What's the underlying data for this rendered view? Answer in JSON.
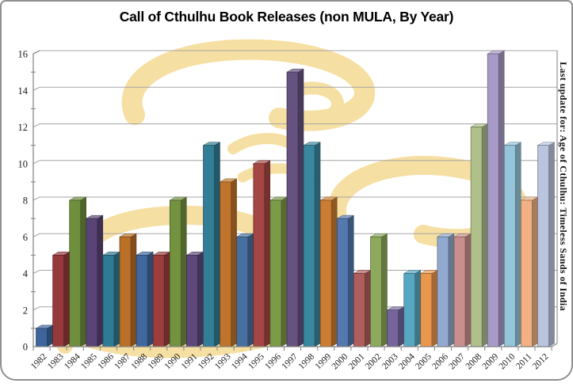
{
  "window": {
    "title": "Call of Cthulhu Book Releases (non MULA, By Year)"
  },
  "side_note": "Last update for: Age of Cthulhu: Timeless Sands of India",
  "chart_data": {
    "type": "bar",
    "style": "3d-clustered-column",
    "title": "Call of Cthulhu Book Releases (non MULA, By Year)",
    "categories": [
      "1982",
      "1983",
      "1984",
      "1985",
      "1986",
      "1987",
      "1988",
      "1989",
      "1990",
      "1991",
      "1992",
      "1993",
      "1994",
      "1995",
      "1996",
      "1997",
      "1998",
      "1999",
      "2000",
      "2001",
      "2002",
      "2003",
      "2004",
      "2005",
      "2006",
      "2007",
      "2008",
      "2009",
      "2010",
      "2011",
      "2012"
    ],
    "values": [
      1,
      5,
      8,
      7,
      5,
      6,
      5,
      5,
      8,
      5,
      11,
      9,
      6,
      10,
      8,
      15,
      11,
      8,
      7,
      4,
      6,
      2,
      4,
      4,
      6,
      6,
      12,
      16,
      11,
      8,
      11
    ],
    "bar_colors": [
      "#3D659C",
      "#96393A",
      "#6F8F3D",
      "#5A4476",
      "#2F7B93",
      "#BB7028",
      "#40689F",
      "#9B3E3D",
      "#739240",
      "#5E4879",
      "#327E96",
      "#C0742B",
      "#48709F",
      "#A44643",
      "#7D9A48",
      "#665280",
      "#3A87A0",
      "#CB7D31",
      "#5578AE",
      "#B05E5B",
      "#8CA95C",
      "#75659A",
      "#58A7C2",
      "#E9974C",
      "#92AACF",
      "#C98F8D",
      "#AFC08B",
      "#A89AC7",
      "#94C5D8",
      "#F2B183",
      "#B9C5DE"
    ],
    "xlabel": "",
    "ylabel": "",
    "ylim": [
      0,
      16
    ],
    "ytick_step": 2,
    "minor_tick_step": 1,
    "grid": true,
    "legend": "none",
    "axis_color": "#808080",
    "gridline_color": "#A6A6A6",
    "label_color": "#1A1A1A",
    "watermark_color": "#F6DFA2"
  }
}
